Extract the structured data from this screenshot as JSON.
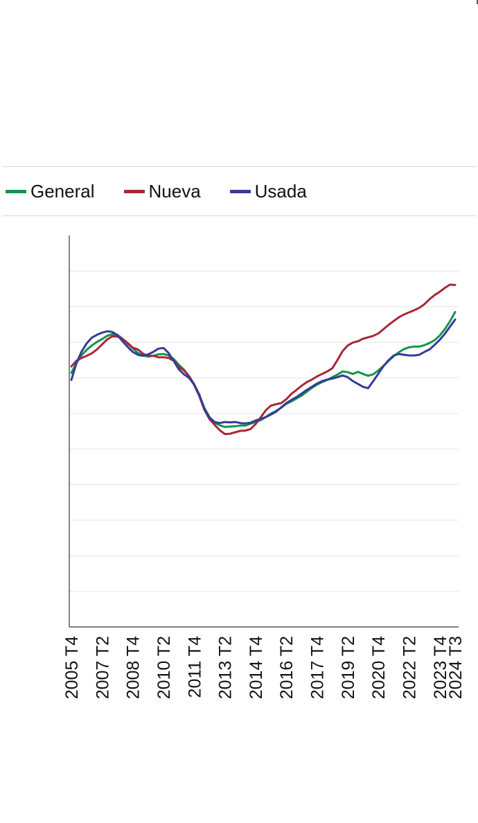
{
  "legend": {
    "items": [
      {
        "label": "General",
        "color": "#0e9648"
      },
      {
        "label": "Nueva",
        "color": "#a82737"
      },
      {
        "label": "Usada",
        "color": "#353a9c"
      }
    ]
  },
  "chart_data": {
    "type": "line",
    "title": "",
    "xlabel": "",
    "ylabel": "",
    "ylim": [
      0,
      11
    ],
    "grid": true,
    "legend_position": "top",
    "x_tick_labels": [
      "2005 T4",
      "2007 T2",
      "2008 T4",
      "2010 T2",
      "2011 T4",
      "2013 T2",
      "2014 T4",
      "2016 T2",
      "2017 T4",
      "2019 T2",
      "2020 T4",
      "2022 T2",
      "2023 T4",
      "2024 T3"
    ],
    "x_tick_index": [
      0,
      6,
      12,
      18,
      24,
      30,
      36,
      42,
      48,
      54,
      60,
      66,
      72,
      75
    ],
    "x": [
      "2005 T4",
      "2006 T1",
      "2006 T2",
      "2006 T3",
      "2006 T4",
      "2007 T1",
      "2007 T2",
      "2007 T3",
      "2007 T4",
      "2008 T1",
      "2008 T2",
      "2008 T3",
      "2008 T4",
      "2009 T1",
      "2009 T2",
      "2009 T3",
      "2009 T4",
      "2010 T1",
      "2010 T2",
      "2010 T3",
      "2010 T4",
      "2011 T1",
      "2011 T2",
      "2011 T3",
      "2011 T4",
      "2012 T1",
      "2012 T2",
      "2012 T3",
      "2012 T4",
      "2013 T1",
      "2013 T2",
      "2013 T3",
      "2013 T4",
      "2014 T1",
      "2014 T2",
      "2014 T3",
      "2014 T4",
      "2015 T1",
      "2015 T2",
      "2015 T3",
      "2015 T4",
      "2016 T1",
      "2016 T2",
      "2016 T3",
      "2016 T4",
      "2017 T1",
      "2017 T2",
      "2017 T3",
      "2017 T4",
      "2018 T1",
      "2018 T2",
      "2018 T3",
      "2018 T4",
      "2019 T1",
      "2019 T2",
      "2019 T3",
      "2019 T4",
      "2020 T1",
      "2020 T2",
      "2020 T3",
      "2020 T4",
      "2021 T1",
      "2021 T2",
      "2021 T3",
      "2021 T4",
      "2022 T1",
      "2022 T2",
      "2022 T3",
      "2022 T4",
      "2023 T1",
      "2023 T2",
      "2023 T3",
      "2023 T4",
      "2024 T1",
      "2024 T2",
      "2024 T3"
    ],
    "series": [
      {
        "name": "General",
        "color": "#0e9648",
        "values": [
          7.14,
          7.42,
          7.64,
          7.79,
          7.91,
          8.01,
          8.09,
          8.18,
          8.23,
          8.21,
          8.1,
          7.96,
          7.83,
          7.7,
          7.63,
          7.6,
          7.62,
          7.66,
          7.67,
          7.63,
          7.53,
          7.37,
          7.23,
          7.05,
          6.82,
          6.52,
          6.15,
          5.9,
          5.74,
          5.67,
          5.62,
          5.63,
          5.64,
          5.66,
          5.66,
          5.71,
          5.76,
          5.81,
          5.9,
          6.0,
          6.07,
          6.16,
          6.27,
          6.34,
          6.42,
          6.5,
          6.61,
          6.72,
          6.81,
          6.88,
          6.94,
          7.02,
          7.09,
          7.18,
          7.16,
          7.11,
          7.17,
          7.11,
          7.06,
          7.1,
          7.21,
          7.34,
          7.48,
          7.61,
          7.72,
          7.81,
          7.86,
          7.88,
          7.88,
          7.92,
          7.98,
          8.06,
          8.19,
          8.37,
          8.59,
          8.85
        ]
      },
      {
        "name": "Nueva",
        "color": "#a82737",
        "values": [
          7.32,
          7.48,
          7.56,
          7.62,
          7.69,
          7.8,
          7.94,
          8.08,
          8.17,
          8.16,
          8.1,
          7.98,
          7.85,
          7.8,
          7.68,
          7.62,
          7.62,
          7.58,
          7.58,
          7.56,
          7.48,
          7.31,
          7.21,
          7.05,
          6.8,
          6.49,
          6.1,
          5.84,
          5.68,
          5.53,
          5.42,
          5.43,
          5.47,
          5.51,
          5.52,
          5.56,
          5.7,
          5.89,
          6.09,
          6.22,
          6.26,
          6.29,
          6.4,
          6.55,
          6.66,
          6.78,
          6.88,
          6.95,
          7.04,
          7.11,
          7.18,
          7.27,
          7.5,
          7.75,
          7.91,
          7.99,
          8.03,
          8.1,
          8.14,
          8.18,
          8.25,
          8.37,
          8.49,
          8.6,
          8.7,
          8.78,
          8.84,
          8.9,
          8.97,
          9.07,
          9.21,
          9.33,
          9.42,
          9.53,
          9.62,
          9.61
        ]
      },
      {
        "name": "Usada",
        "color": "#353a9c",
        "values": [
          6.94,
          7.42,
          7.74,
          7.97,
          8.13,
          8.21,
          8.27,
          8.31,
          8.29,
          8.2,
          8.03,
          7.87,
          7.73,
          7.65,
          7.62,
          7.66,
          7.73,
          7.82,
          7.84,
          7.7,
          7.48,
          7.24,
          7.1,
          7.0,
          6.81,
          6.53,
          6.12,
          5.89,
          5.76,
          5.73,
          5.76,
          5.75,
          5.76,
          5.73,
          5.72,
          5.74,
          5.8,
          5.85,
          5.9,
          5.97,
          6.05,
          6.17,
          6.29,
          6.38,
          6.46,
          6.56,
          6.66,
          6.75,
          6.84,
          6.91,
          6.95,
          6.98,
          7.02,
          7.07,
          7.02,
          6.91,
          6.83,
          6.75,
          6.71,
          6.91,
          7.12,
          7.33,
          7.5,
          7.63,
          7.67,
          7.65,
          7.63,
          7.63,
          7.65,
          7.73,
          7.8,
          7.93,
          8.07,
          8.24,
          8.44,
          8.64
        ]
      }
    ]
  }
}
